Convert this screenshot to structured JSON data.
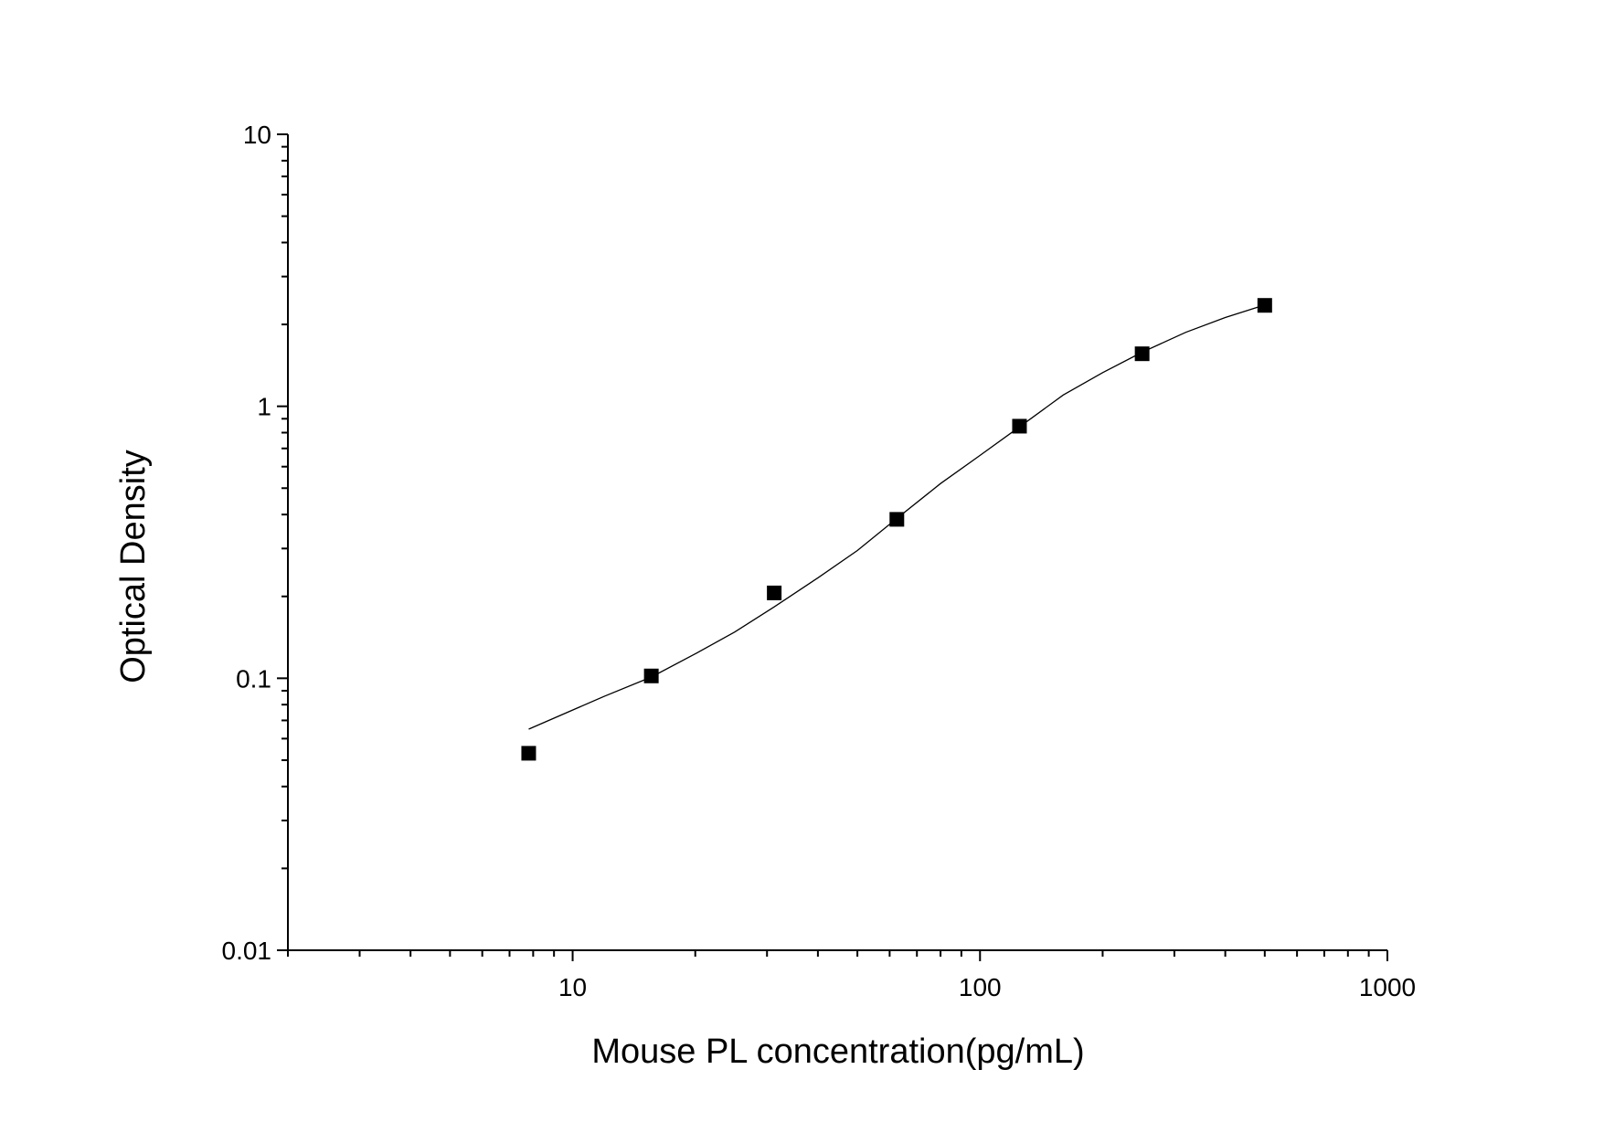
{
  "chart_data": {
    "type": "scatter",
    "xlabel": "Mouse PL concentration(pg/mL)",
    "ylabel": "Optical Density",
    "x_scale": "log",
    "y_scale": "log",
    "xlim": [
      2,
      1000
    ],
    "ylim": [
      0.01,
      10
    ],
    "x_ticks": [
      {
        "value": 10,
        "label": "10"
      },
      {
        "value": 100,
        "label": "100"
      },
      {
        "value": 1000,
        "label": "1000"
      }
    ],
    "y_ticks": [
      {
        "value": 0.01,
        "label": "0.01"
      },
      {
        "value": 0.1,
        "label": "0.1"
      },
      {
        "value": 1,
        "label": "1"
      },
      {
        "value": 10,
        "label": "10"
      }
    ],
    "grid": false,
    "legend": "none",
    "series": [
      {
        "marker": "square",
        "color": "#000000",
        "points": [
          {
            "x": 7.8,
            "y": 0.053
          },
          {
            "x": 15.6,
            "y": 0.102
          },
          {
            "x": 31.25,
            "y": 0.206
          },
          {
            "x": 62.5,
            "y": 0.384
          },
          {
            "x": 125,
            "y": 0.845
          },
          {
            "x": 250,
            "y": 1.56
          },
          {
            "x": 500,
            "y": 2.35
          }
        ]
      }
    ],
    "fit_curve": {
      "color": "#000000",
      "points": [
        {
          "x": 7.8,
          "y": 0.065
        },
        {
          "x": 12,
          "y": 0.086
        },
        {
          "x": 15.6,
          "y": 0.101
        },
        {
          "x": 20,
          "y": 0.123
        },
        {
          "x": 25,
          "y": 0.148
        },
        {
          "x": 31.25,
          "y": 0.183
        },
        {
          "x": 40,
          "y": 0.234
        },
        {
          "x": 50,
          "y": 0.295
        },
        {
          "x": 62.5,
          "y": 0.387
        },
        {
          "x": 80,
          "y": 0.52
        },
        {
          "x": 100,
          "y": 0.66
        },
        {
          "x": 125,
          "y": 0.84
        },
        {
          "x": 160,
          "y": 1.1
        },
        {
          "x": 200,
          "y": 1.33
        },
        {
          "x": 250,
          "y": 1.58
        },
        {
          "x": 320,
          "y": 1.87
        },
        {
          "x": 400,
          "y": 2.12
        },
        {
          "x": 500,
          "y": 2.36
        }
      ]
    }
  }
}
